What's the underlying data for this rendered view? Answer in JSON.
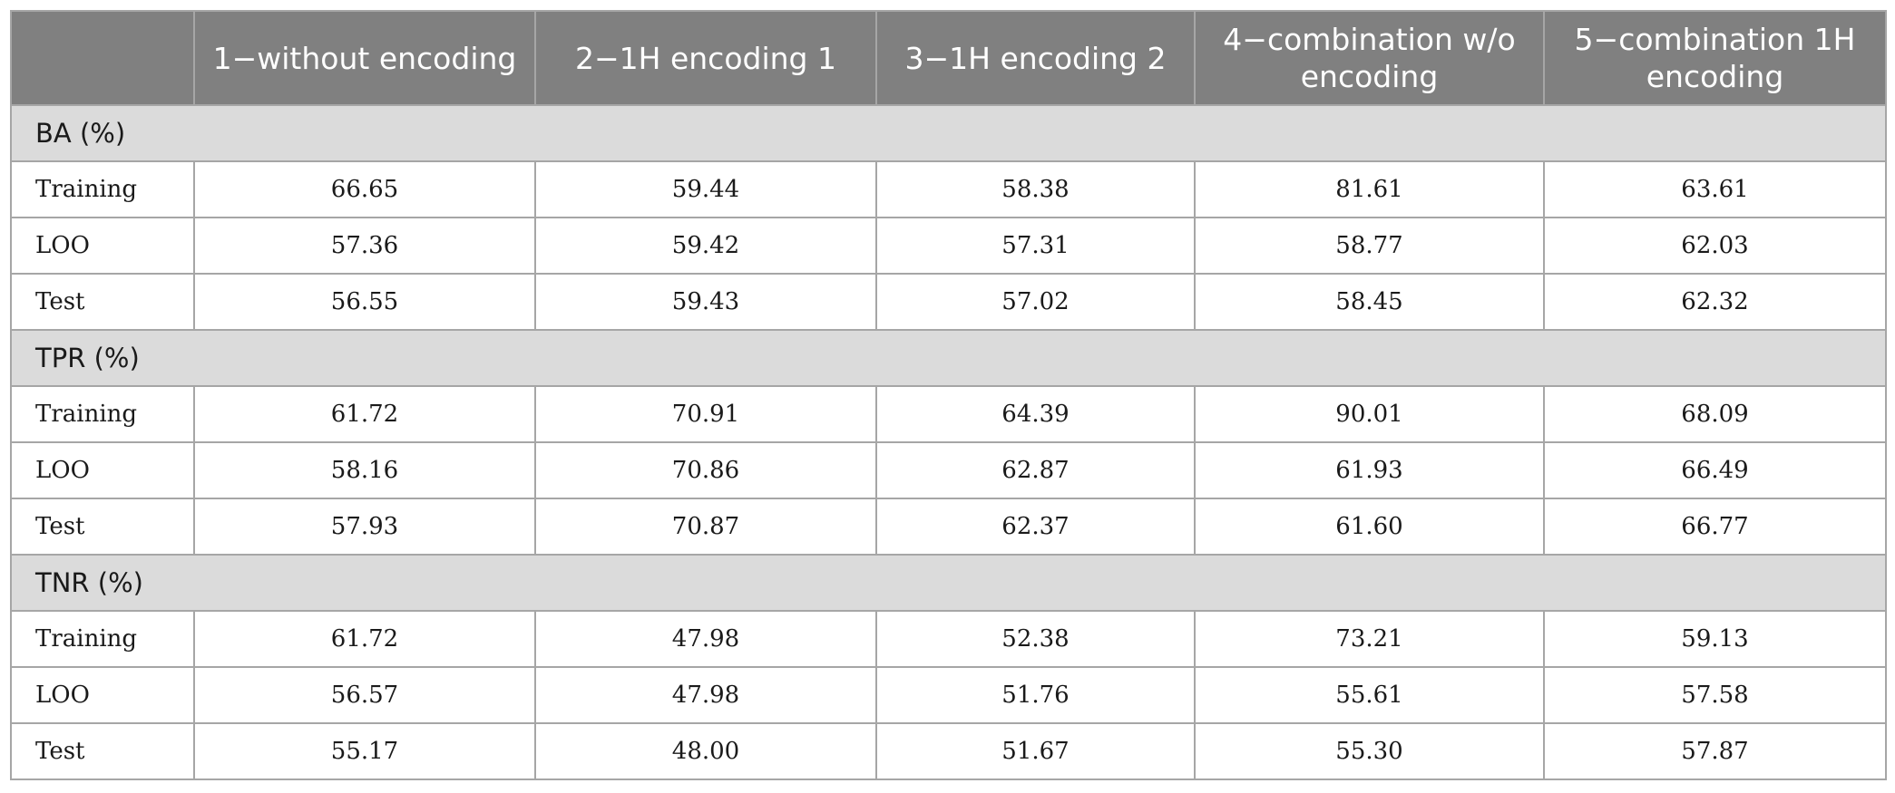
{
  "table": {
    "columns": [
      "",
      "1−without encoding",
      "2−1H encoding 1",
      "3−1H encoding 2",
      "4−combination w/o encoding",
      "5−combination 1H encoding"
    ],
    "groups": [
      {
        "label": "BA (%)",
        "rows": [
          {
            "label": "Training",
            "values": [
              "66.65",
              "59.44",
              "58.38",
              "81.61",
              "63.61"
            ]
          },
          {
            "label": "LOO",
            "values": [
              "57.36",
              "59.42",
              "57.31",
              "58.77",
              "62.03"
            ]
          },
          {
            "label": "Test",
            "values": [
              "56.55",
              "59.43",
              "57.02",
              "58.45",
              "62.32"
            ]
          }
        ]
      },
      {
        "label": "TPR (%)",
        "rows": [
          {
            "label": "Training",
            "values": [
              "61.72",
              "70.91",
              "64.39",
              "90.01",
              "68.09"
            ]
          },
          {
            "label": "LOO",
            "values": [
              "58.16",
              "70.86",
              "62.87",
              "61.93",
              "66.49"
            ]
          },
          {
            "label": "Test",
            "values": [
              "57.93",
              "70.87",
              "62.37",
              "61.60",
              "66.77"
            ]
          }
        ]
      },
      {
        "label": "TNR (%)",
        "rows": [
          {
            "label": "Training",
            "values": [
              "61.72",
              "47.98",
              "52.38",
              "73.21",
              "59.13"
            ]
          },
          {
            "label": "LOO",
            "values": [
              "56.57",
              "47.98",
              "51.76",
              "55.61",
              "57.58"
            ]
          },
          {
            "label": "Test",
            "values": [
              "55.17",
              "48.00",
              "51.67",
              "55.30",
              "57.87"
            ]
          }
        ]
      }
    ]
  }
}
